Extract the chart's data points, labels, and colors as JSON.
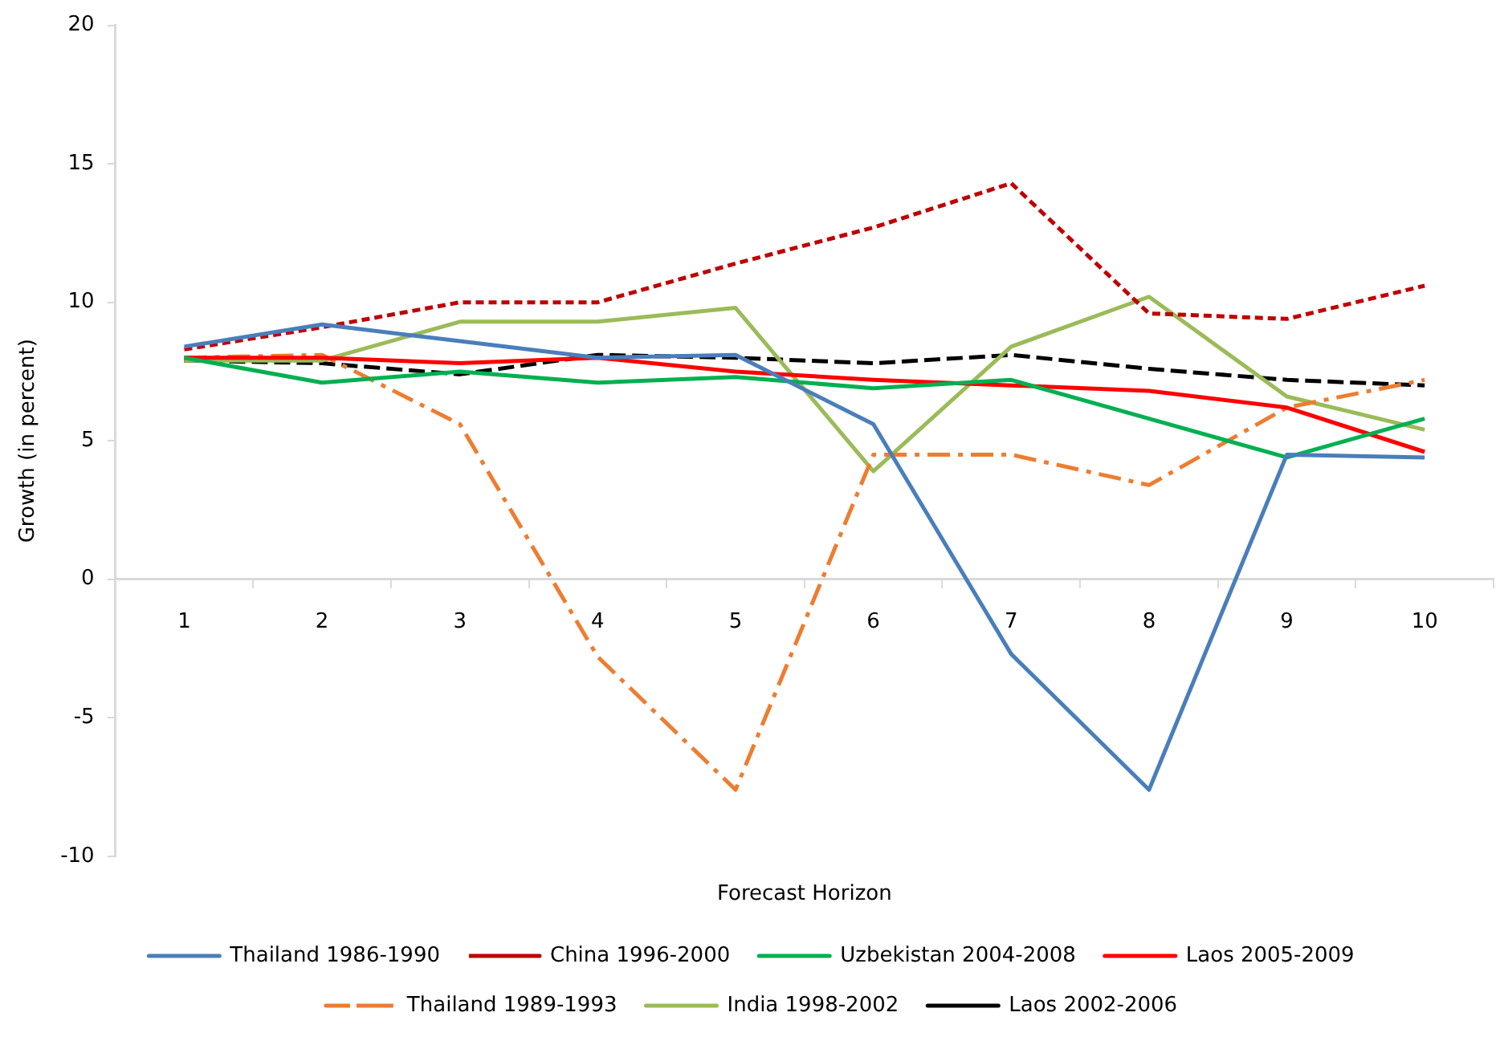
{
  "chart_data": {
    "type": "line",
    "xlabel": "Forecast Horizon",
    "ylabel": "Growth (in percent)",
    "categories": [
      "1",
      "2",
      "3",
      "4",
      "5",
      "6",
      "7",
      "8",
      "9",
      "10"
    ],
    "ylim": [
      -10,
      20
    ],
    "yticks": [
      -10,
      -5,
      0,
      5,
      10,
      15,
      20
    ],
    "grid": false,
    "legend": "bottom",
    "marker": "none",
    "series": [
      {
        "name": "Thailand 1986-1990",
        "color": "#4a7ebb",
        "line_style": "solid",
        "values": [
          8.4,
          9.2,
          8.6,
          8.0,
          8.1,
          5.6,
          -2.7,
          -7.6,
          4.5,
          4.4
        ]
      },
      {
        "name": "China 1996-2000",
        "color": "#c00000",
        "line_style": "dotted",
        "values": [
          8.3,
          9.1,
          10.0,
          10.0,
          11.4,
          12.7,
          14.3,
          9.6,
          9.4,
          10.6
        ]
      },
      {
        "name": "Uzbekistan 2004-2008",
        "color": "#00b050",
        "line_style": "solid",
        "values": [
          8.0,
          7.1,
          7.5,
          7.1,
          7.3,
          6.9,
          7.2,
          5.8,
          4.4,
          5.8
        ]
      },
      {
        "name": "Laos 2005-2009",
        "color": "#ff0000",
        "line_style": "solid",
        "values": [
          8.0,
          8.0,
          7.8,
          8.0,
          7.5,
          7.2,
          7.0,
          6.8,
          6.2,
          4.6
        ]
      },
      {
        "name": "Thailand 1989-1993",
        "color": "#ed7d31",
        "line_style": "dashdot",
        "values": [
          8.0,
          8.1,
          5.6,
          -2.8,
          -7.6,
          4.5,
          4.5,
          3.4,
          6.2,
          7.2
        ]
      },
      {
        "name": "India 1998-2002",
        "color": "#9bbb59",
        "line_style": "solid",
        "values": [
          7.9,
          7.9,
          9.3,
          9.3,
          9.8,
          3.9,
          8.4,
          10.2,
          6.6,
          5.4
        ]
      },
      {
        "name": "Laos 2002-2006",
        "color": "#000000",
        "line_style": "dashed",
        "values": [
          7.9,
          7.8,
          7.4,
          8.1,
          8.0,
          7.8,
          8.1,
          7.6,
          7.2,
          7.0
        ]
      }
    ]
  }
}
